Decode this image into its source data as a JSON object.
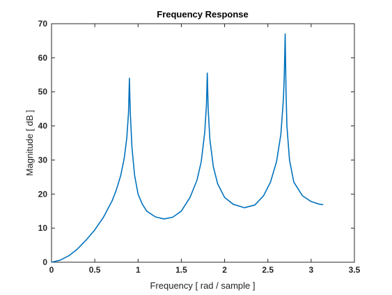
{
  "chart_data": {
    "type": "line",
    "title": "Frequency Response",
    "xlabel": "Frequency [ rad / sample ]",
    "ylabel": "Magnitude [ dB ]",
    "xlim": [
      0,
      3.5
    ],
    "ylim": [
      0,
      70
    ],
    "xticks": [
      "0",
      "0.5",
      "1",
      "1.5",
      "2",
      "2.5",
      "3",
      "3.5"
    ],
    "yticks": [
      "0",
      "10",
      "20",
      "30",
      "40",
      "50",
      "60",
      "70"
    ],
    "grid": false,
    "legend": "none",
    "series": [
      {
        "color": "#0072BD",
        "x": [
          0,
          0.1,
          0.2,
          0.3,
          0.4,
          0.5,
          0.6,
          0.7,
          0.75,
          0.8,
          0.84,
          0.87,
          0.89,
          0.9,
          0.91,
          0.93,
          0.96,
          1.0,
          1.05,
          1.1,
          1.2,
          1.3,
          1.4,
          1.5,
          1.6,
          1.68,
          1.73,
          1.77,
          1.79,
          1.8,
          1.81,
          1.83,
          1.87,
          1.92,
          2.0,
          2.1,
          2.23,
          2.35,
          2.45,
          2.53,
          2.6,
          2.65,
          2.68,
          2.69,
          2.7,
          2.71,
          2.72,
          2.75,
          2.8,
          2.9,
          3.0,
          3.1,
          3.14
        ],
        "y": [
          0,
          0.6,
          1.9,
          3.9,
          6.5,
          9.5,
          13.2,
          18.0,
          21.3,
          25.5,
          30.5,
          36.5,
          44.0,
          54.0,
          44.0,
          33.5,
          25.5,
          20.0,
          17.0,
          15.0,
          13.3,
          12.7,
          13.2,
          15.0,
          19.0,
          24.0,
          29.5,
          38.0,
          46.0,
          55.5,
          45.0,
          36.0,
          28.0,
          23.0,
          19.0,
          17.0,
          16.0,
          16.8,
          19.5,
          23.5,
          29.5,
          37.5,
          48.0,
          55.0,
          67.0,
          50.0,
          40.0,
          30.0,
          23.5,
          19.5,
          17.8,
          17.0,
          16.9
        ]
      }
    ]
  }
}
